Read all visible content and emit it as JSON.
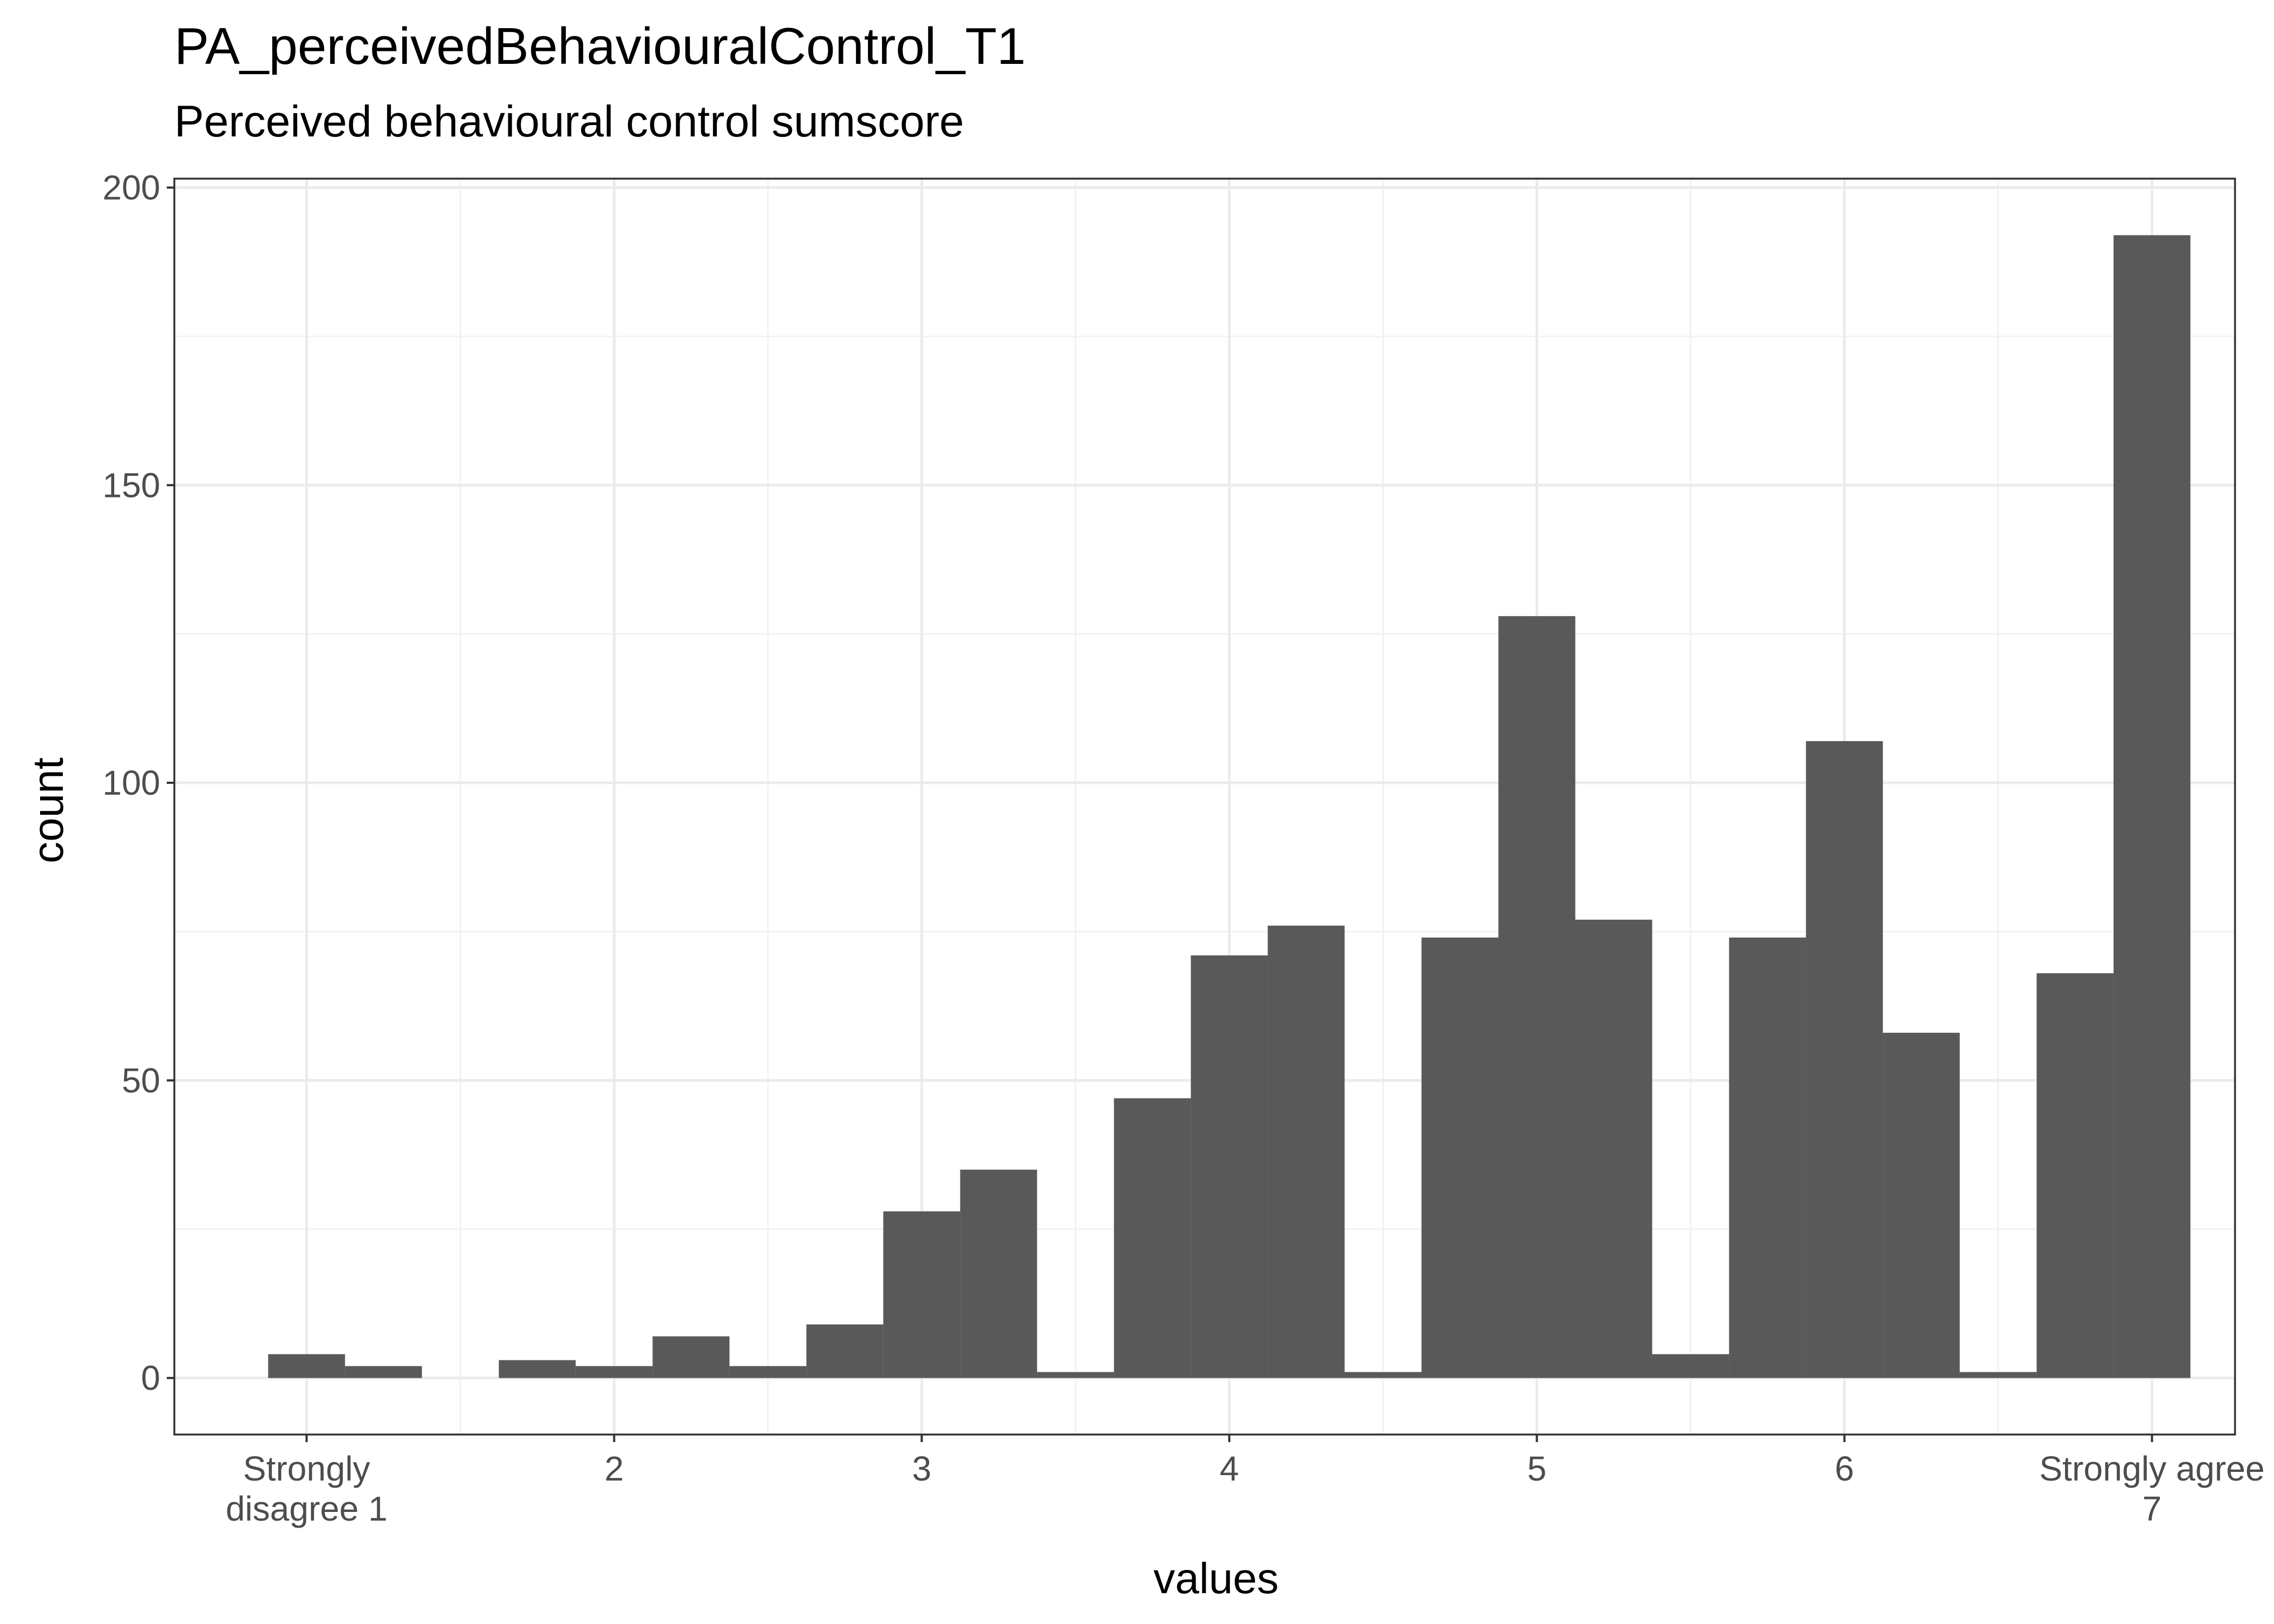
{
  "chart_data": {
    "type": "bar",
    "title": "PA_perceivedBehaviouralControl_T1",
    "subtitle": "Perceived behavioural control sumscore",
    "xlabel": "values",
    "ylabel": "count",
    "xlim": [
      0.57,
      7.27
    ],
    "ylim": [
      -9.5,
      201.5
    ],
    "x_ticks": [
      1,
      2,
      3,
      4,
      5,
      6,
      7
    ],
    "x_tick_labels": [
      [
        "Strongly",
        "disagree 1"
      ],
      [
        "2"
      ],
      [
        "3"
      ],
      [
        "4"
      ],
      [
        "5"
      ],
      [
        "6"
      ],
      [
        "Strongly agree",
        "7"
      ]
    ],
    "y_ticks": [
      0,
      50,
      100,
      150,
      200
    ],
    "y_tick_labels": [
      "0",
      "50",
      "100",
      "150",
      "200"
    ],
    "bin_width": 0.25,
    "bins": [
      {
        "x_start": 0.875,
        "x_end": 1.125,
        "count": 4
      },
      {
        "x_start": 1.125,
        "x_end": 1.375,
        "count": 2
      },
      {
        "x_start": 1.625,
        "x_end": 1.875,
        "count": 3
      },
      {
        "x_start": 1.875,
        "x_end": 2.125,
        "count": 2
      },
      {
        "x_start": 2.125,
        "x_end": 2.375,
        "count": 7
      },
      {
        "x_start": 2.375,
        "x_end": 2.625,
        "count": 2
      },
      {
        "x_start": 2.625,
        "x_end": 2.875,
        "count": 9
      },
      {
        "x_start": 2.875,
        "x_end": 3.125,
        "count": 28
      },
      {
        "x_start": 3.125,
        "x_end": 3.375,
        "count": 35
      },
      {
        "x_start": 3.375,
        "x_end": 3.625,
        "count": 1
      },
      {
        "x_start": 3.625,
        "x_end": 3.875,
        "count": 47
      },
      {
        "x_start": 3.875,
        "x_end": 4.125,
        "count": 71
      },
      {
        "x_start": 4.125,
        "x_end": 4.375,
        "count": 76
      },
      {
        "x_start": 4.375,
        "x_end": 4.625,
        "count": 1
      },
      {
        "x_start": 4.625,
        "x_end": 4.875,
        "count": 74
      },
      {
        "x_start": 4.875,
        "x_end": 5.125,
        "count": 128
      },
      {
        "x_start": 5.125,
        "x_end": 5.375,
        "count": 77
      },
      {
        "x_start": 5.375,
        "x_end": 5.625,
        "count": 4
      },
      {
        "x_start": 5.625,
        "x_end": 5.875,
        "count": 74
      },
      {
        "x_start": 5.875,
        "x_end": 6.125,
        "count": 107
      },
      {
        "x_start": 6.125,
        "x_end": 6.375,
        "count": 58
      },
      {
        "x_start": 6.375,
        "x_end": 6.625,
        "count": 1
      },
      {
        "x_start": 6.625,
        "x_end": 6.875,
        "count": 68
      },
      {
        "x_start": 6.875,
        "x_end": 7.125,
        "count": 192
      }
    ],
    "colors": {
      "bar": "#595959",
      "panel_border": "#333333",
      "grid_major": "#ebebeb",
      "grid_minor": "#f2f2f2",
      "tick_label": "#4d4d4d",
      "background": "#ffffff"
    },
    "grid": true,
    "legend": "none",
    "theme": "bw"
  }
}
